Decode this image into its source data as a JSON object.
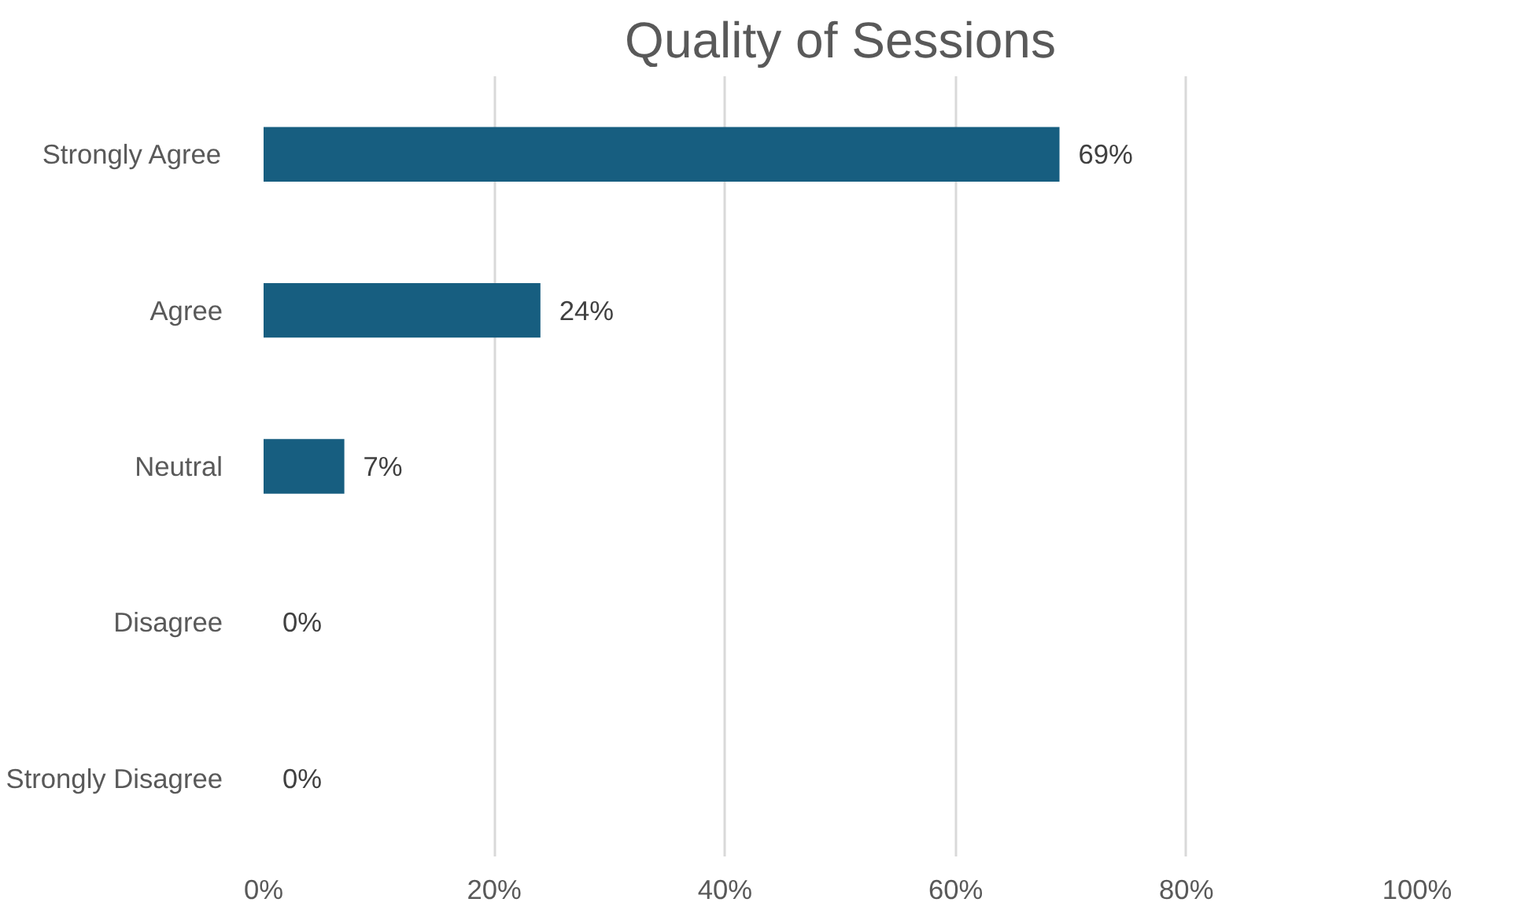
{
  "chart_data": {
    "type": "bar",
    "orientation": "horizontal",
    "title": "Quality of Sessions",
    "categories": [
      "Strongly Agree",
      "Agree",
      "Neutral",
      "Disagree",
      "Strongly Disagree"
    ],
    "values": [
      69,
      24,
      7,
      0,
      0
    ],
    "color": "#175e80",
    "value_labels": [
      "69%",
      "24%",
      "7%",
      "0%",
      "0%"
    ],
    "xlim": [
      0,
      100
    ],
    "xticks": [
      {
        "value": 0,
        "label": "0%"
      },
      {
        "value": 20,
        "label": "20%"
      },
      {
        "value": 40,
        "label": "40%"
      },
      {
        "value": 60,
        "label": "60%"
      },
      {
        "value": 80,
        "label": "80%"
      },
      {
        "value": 100,
        "label": "100%"
      }
    ],
    "grid": "x"
  }
}
